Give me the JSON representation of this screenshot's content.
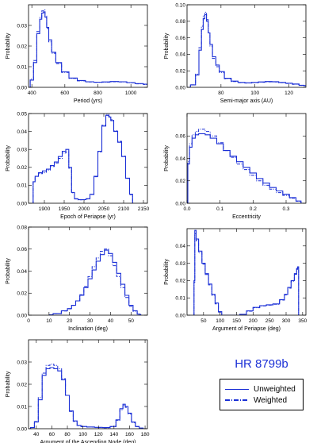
{
  "figure": {
    "object_name": "HR 8799b",
    "legend": {
      "solid_label": "Unweighted",
      "dashed_label": "Weighted"
    },
    "colors": {
      "series": "#1a2fd6",
      "axes": "#000000"
    }
  },
  "chart_data": [
    {
      "id": "period",
      "type": "line",
      "xlabel": "Period (yrs)",
      "ylabel": "Probability",
      "xlim": [
        380,
        1100
      ],
      "ylim": [
        0,
        0.04
      ],
      "xticks": [
        400,
        600,
        800,
        1000
      ],
      "yticks": [
        0,
        0.01,
        0.02,
        0.03
      ],
      "xticklabels": [
        "400",
        "600",
        "800",
        "1000"
      ],
      "yticklabels": [
        "0.00",
        "0.01",
        "0.02",
        "0.03"
      ],
      "series": [
        {
          "name": "Unweighted",
          "style": "solid",
          "x": [
            380,
            400,
            420,
            440,
            455,
            465,
            475,
            485,
            495,
            510,
            530,
            560,
            600,
            650,
            700,
            750,
            800,
            850,
            900,
            950,
            1000,
            1050,
            1100
          ],
          "y": [
            0,
            0.0035,
            0.012,
            0.026,
            0.033,
            0.036,
            0.0365,
            0.034,
            0.029,
            0.023,
            0.017,
            0.012,
            0.0075,
            0.0045,
            0.0033,
            0.0027,
            0.0025,
            0.0026,
            0.0028,
            0.0027,
            0.0023,
            0.0018,
            0.0015
          ]
        },
        {
          "name": "Weighted",
          "style": "dash-dot",
          "x": [
            380,
            400,
            420,
            440,
            455,
            465,
            475,
            485,
            495,
            510,
            530,
            560,
            600,
            650,
            700,
            750,
            800,
            850,
            900,
            950,
            1000,
            1050,
            1100
          ],
          "y": [
            0,
            0.004,
            0.013,
            0.027,
            0.034,
            0.037,
            0.0375,
            0.0345,
            0.0285,
            0.022,
            0.0165,
            0.0115,
            0.0072,
            0.0043,
            0.0031,
            0.0026,
            0.0024,
            0.0025,
            0.0027,
            0.0026,
            0.0022,
            0.0017,
            0.0014
          ]
        }
      ]
    },
    {
      "id": "sma",
      "type": "line",
      "xlabel": "Semi-major axis (AU)",
      "ylabel": "Probability",
      "xlim": [
        60,
        130
      ],
      "ylim": [
        0,
        0.1
      ],
      "xticks": [
        80,
        100,
        120
      ],
      "yticks": [
        0,
        0.02,
        0.04,
        0.06,
        0.08,
        0.1
      ],
      "xticklabels": [
        "80",
        "100",
        "120"
      ],
      "yticklabels": [
        "0.00",
        "0.02",
        "0.04",
        "0.06",
        "0.08",
        "0.10"
      ],
      "series": [
        {
          "name": "Unweighted",
          "style": "solid",
          "x": [
            60,
            64,
            66,
            68,
            69,
            70,
            71,
            72,
            73,
            74,
            76,
            78,
            80,
            84,
            88,
            92,
            96,
            100,
            104,
            108,
            112,
            116,
            120,
            124,
            128,
            130
          ],
          "y": [
            0,
            0.003,
            0.015,
            0.045,
            0.07,
            0.083,
            0.088,
            0.08,
            0.066,
            0.052,
            0.037,
            0.027,
            0.019,
            0.011,
            0.0075,
            0.006,
            0.0055,
            0.006,
            0.0065,
            0.007,
            0.0068,
            0.006,
            0.005,
            0.004,
            0.0025,
            0.002
          ]
        },
        {
          "name": "Weighted",
          "style": "dash-dot",
          "x": [
            60,
            64,
            66,
            68,
            69,
            70,
            71,
            72,
            73,
            74,
            76,
            78,
            80,
            84,
            88,
            92,
            96,
            100,
            104,
            108,
            112,
            116,
            120,
            124,
            128,
            130
          ],
          "y": [
            0,
            0.003,
            0.016,
            0.048,
            0.074,
            0.087,
            0.091,
            0.082,
            0.066,
            0.05,
            0.035,
            0.025,
            0.018,
            0.0105,
            0.007,
            0.0057,
            0.0052,
            0.0057,
            0.0062,
            0.0066,
            0.0064,
            0.0057,
            0.0047,
            0.0037,
            0.0023,
            0.0018
          ]
        }
      ]
    },
    {
      "id": "epoch",
      "type": "line",
      "xlabel": "Epoch of Periapse (yr)",
      "ylabel": "Probability",
      "xlim": [
        1860,
        2160
      ],
      "ylim": [
        0,
        0.05
      ],
      "xticks": [
        1900,
        1950,
        2000,
        2050,
        2100,
        2150
      ],
      "yticks": [
        0,
        0.01,
        0.02,
        0.03,
        0.04,
        0.05
      ],
      "xticklabels": [
        "1900",
        "1950",
        "2000",
        "2050",
        "2100",
        "2150"
      ],
      "yticklabels": [
        "0.00",
        "0.01",
        "0.02",
        "0.03",
        "0.04",
        "0.05"
      ],
      "series": [
        {
          "name": "Unweighted",
          "style": "solid",
          "x": [
            1870,
            1873,
            1880,
            1890,
            1900,
            1910,
            1920,
            1930,
            1940,
            1950,
            1958,
            1965,
            1972,
            1980,
            1990,
            2000,
            2010,
            2020,
            2030,
            2040,
            2050,
            2060,
            2065,
            2070,
            2080,
            2090,
            2100,
            2110,
            2120,
            2125
          ],
          "y": [
            0,
            0.012,
            0.015,
            0.017,
            0.018,
            0.019,
            0.021,
            0.023,
            0.026,
            0.029,
            0.03,
            0.02,
            0.006,
            0.0025,
            0.002,
            0.002,
            0.0025,
            0.005,
            0.015,
            0.029,
            0.043,
            0.049,
            0.048,
            0.046,
            0.04,
            0.034,
            0.026,
            0.014,
            0.005,
            0
          ]
        },
        {
          "name": "Weighted",
          "style": "dash-dot",
          "x": [
            1870,
            1873,
            1880,
            1890,
            1900,
            1910,
            1920,
            1930,
            1940,
            1950,
            1958,
            1965,
            1972,
            1980,
            1990,
            2000,
            2010,
            2020,
            2030,
            2040,
            2050,
            2060,
            2065,
            2070,
            2080,
            2090,
            2100,
            2110,
            2120,
            2125
          ],
          "y": [
            0,
            0.012,
            0.015,
            0.0165,
            0.017,
            0.0185,
            0.0205,
            0.0225,
            0.025,
            0.028,
            0.0285,
            0.0195,
            0.0058,
            0.0024,
            0.0019,
            0.0019,
            0.0024,
            0.0048,
            0.0148,
            0.0285,
            0.0435,
            0.0495,
            0.0485,
            0.0465,
            0.0405,
            0.0345,
            0.0262,
            0.0138,
            0.0048,
            0
          ]
        }
      ]
    },
    {
      "id": "ecc",
      "type": "line",
      "xlabel": "Eccentricity",
      "ylabel": "Probability",
      "xlim": [
        0,
        0.36
      ],
      "ylim": [
        0,
        0.08
      ],
      "xticks": [
        0,
        0.1,
        0.2,
        0.3
      ],
      "yticks": [
        0,
        0.02,
        0.04,
        0.06
      ],
      "xticklabels": [
        "0.0",
        "0.1",
        "0.2",
        "0.3"
      ],
      "yticklabels": [
        "0.00",
        "0.02",
        "0.04",
        "0.06"
      ],
      "series": [
        {
          "name": "Unweighted",
          "style": "solid",
          "x": [
            0,
            0.005,
            0.01,
            0.02,
            0.03,
            0.04,
            0.05,
            0.06,
            0.08,
            0.1,
            0.12,
            0.14,
            0.16,
            0.18,
            0.2,
            0.22,
            0.24,
            0.26,
            0.28,
            0.3,
            0.32,
            0.34,
            0.35
          ],
          "y": [
            0,
            0.035,
            0.05,
            0.058,
            0.061,
            0.062,
            0.062,
            0.061,
            0.058,
            0.053,
            0.047,
            0.042,
            0.037,
            0.032,
            0.027,
            0.022,
            0.018,
            0.014,
            0.011,
            0.008,
            0.005,
            0.002,
            0
          ]
        },
        {
          "name": "Weighted",
          "style": "dash-dot",
          "x": [
            0,
            0.005,
            0.01,
            0.02,
            0.03,
            0.04,
            0.05,
            0.06,
            0.08,
            0.1,
            0.12,
            0.14,
            0.16,
            0.18,
            0.2,
            0.22,
            0.24,
            0.26,
            0.28,
            0.3,
            0.32,
            0.34,
            0.35
          ],
          "y": [
            0,
            0.037,
            0.053,
            0.061,
            0.064,
            0.066,
            0.066,
            0.064,
            0.06,
            0.054,
            0.047,
            0.041,
            0.035,
            0.03,
            0.025,
            0.02,
            0.016,
            0.0125,
            0.0095,
            0.007,
            0.0045,
            0.0018,
            0
          ]
        }
      ]
    },
    {
      "id": "inc",
      "type": "line",
      "xlabel": "Inclination (deg)",
      "ylabel": "Probability",
      "xlim": [
        0,
        58
      ],
      "ylim": [
        0,
        0.08
      ],
      "xticks": [
        0,
        10,
        20,
        30,
        40,
        50
      ],
      "yticks": [
        0,
        0.02,
        0.04,
        0.06,
        0.08
      ],
      "xticklabels": [
        "0",
        "10",
        "20",
        "30",
        "40",
        "50"
      ],
      "yticklabels": [
        "0.00",
        "0.02",
        "0.04",
        "0.06",
        "0.08"
      ],
      "series": [
        {
          "name": "Unweighted",
          "style": "solid",
          "x": [
            10,
            14,
            18,
            20,
            22,
            24,
            26,
            28,
            30,
            32,
            34,
            36,
            38,
            40,
            42,
            44,
            46,
            48,
            50,
            52,
            54,
            55
          ],
          "y": [
            0.0003,
            0.0015,
            0.004,
            0.006,
            0.009,
            0.013,
            0.018,
            0.025,
            0.033,
            0.041,
            0.049,
            0.055,
            0.059,
            0.056,
            0.048,
            0.038,
            0.028,
            0.018,
            0.009,
            0.004,
            0.001,
            0.0003
          ]
        },
        {
          "name": "Weighted",
          "style": "dash-dot",
          "x": [
            10,
            14,
            18,
            20,
            22,
            24,
            26,
            28,
            30,
            32,
            34,
            36,
            38,
            40,
            42,
            44,
            46,
            48,
            50,
            52,
            54,
            55
          ],
          "y": [
            0.0003,
            0.0014,
            0.0038,
            0.0058,
            0.0088,
            0.013,
            0.0185,
            0.026,
            0.035,
            0.044,
            0.052,
            0.058,
            0.06,
            0.054,
            0.045,
            0.035,
            0.025,
            0.016,
            0.008,
            0.0035,
            0.0009,
            0.0002
          ]
        }
      ]
    },
    {
      "id": "argperi",
      "type": "line",
      "xlabel": "Argument of Periapse (deg)",
      "ylabel": "Probability",
      "xlim": [
        0,
        360
      ],
      "ylim": [
        0,
        0.05
      ],
      "xticks": [
        50,
        100,
        150,
        200,
        250,
        300,
        350
      ],
      "yticks": [
        0,
        0.01,
        0.02,
        0.03,
        0.04
      ],
      "xticklabels": [
        "50",
        "100",
        "150",
        "200",
        "250",
        "300",
        "350"
      ],
      "yticklabels": [
        "0.00",
        "0.01",
        "0.02",
        "0.03",
        "0.04"
      ],
      "series": [
        {
          "name": "Unweighted",
          "style": "solid",
          "x": [
            20,
            22,
            25,
            30,
            40,
            50,
            60,
            70,
            80,
            90,
            100,
            110,
            150,
            170,
            190,
            210,
            230,
            250,
            270,
            290,
            300,
            310,
            320,
            330,
            334,
            336,
            340
          ],
          "y": [
            0,
            0.02,
            0.049,
            0.044,
            0.037,
            0.03,
            0.024,
            0.018,
            0.012,
            0.007,
            0.002,
            0,
            0,
            0.0005,
            0.0025,
            0.0045,
            0.0055,
            0.006,
            0.0065,
            0.009,
            0.012,
            0.016,
            0.02,
            0.024,
            0.027,
            0.028,
            0
          ]
        },
        {
          "name": "Weighted",
          "style": "dash-dot",
          "x": [
            20,
            22,
            25,
            30,
            40,
            50,
            60,
            70,
            80,
            90,
            100,
            110,
            150,
            170,
            190,
            210,
            230,
            250,
            270,
            290,
            300,
            310,
            320,
            330,
            334,
            336,
            340
          ],
          "y": [
            0,
            0.019,
            0.047,
            0.043,
            0.036,
            0.0295,
            0.0235,
            0.0175,
            0.0115,
            0.0065,
            0.0018,
            0,
            0,
            0.0004,
            0.0023,
            0.0043,
            0.0053,
            0.0058,
            0.0063,
            0.0087,
            0.0117,
            0.0156,
            0.0196,
            0.0236,
            0.0265,
            0.0275,
            0
          ]
        }
      ]
    },
    {
      "id": "node",
      "type": "line",
      "xlabel": "Argument of the Ascending Node (deg)",
      "ylabel": "Probability",
      "xlim": [
        30,
        183
      ],
      "ylim": [
        0,
        0.04
      ],
      "xticks": [
        40,
        60,
        80,
        100,
        120,
        140,
        160,
        180
      ],
      "yticks": [
        0,
        0.01,
        0.02,
        0.03
      ],
      "xticklabels": [
        "40",
        "60",
        "80",
        "100",
        "120",
        "140",
        "160",
        "180"
      ],
      "yticklabels": [
        "0.00",
        "0.01",
        "0.02",
        "0.03"
      ],
      "series": [
        {
          "name": "Unweighted",
          "style": "solid",
          "x": [
            30,
            35,
            40,
            45,
            50,
            55,
            60,
            65,
            70,
            75,
            80,
            85,
            90,
            95,
            100,
            110,
            120,
            130,
            140,
            145,
            150,
            153,
            156,
            160,
            165,
            170,
            175,
            180,
            183
          ],
          "y": [
            0,
            0.0005,
            0.003,
            0.013,
            0.024,
            0.027,
            0.0275,
            0.027,
            0.026,
            0.022,
            0.015,
            0.008,
            0.0035,
            0.0015,
            0.001,
            0.0008,
            0.0006,
            0.0005,
            0.001,
            0.004,
            0.009,
            0.011,
            0.01,
            0.007,
            0.003,
            0.001,
            0.0003,
            0,
            0
          ]
        },
        {
          "name": "Weighted",
          "style": "dash-dot",
          "x": [
            30,
            35,
            40,
            45,
            50,
            55,
            60,
            65,
            70,
            75,
            80,
            85,
            90,
            95,
            100,
            110,
            120,
            130,
            140,
            145,
            150,
            153,
            156,
            160,
            165,
            170,
            175,
            180,
            183
          ],
          "y": [
            0,
            0.0005,
            0.0032,
            0.014,
            0.025,
            0.0285,
            0.029,
            0.0285,
            0.027,
            0.0225,
            0.015,
            0.0078,
            0.0033,
            0.0014,
            0.0009,
            0.0007,
            0.0005,
            0.0004,
            0.0009,
            0.0038,
            0.0085,
            0.0105,
            0.0096,
            0.0067,
            0.0028,
            0.0009,
            0.0002,
            0,
            0
          ]
        }
      ]
    }
  ]
}
